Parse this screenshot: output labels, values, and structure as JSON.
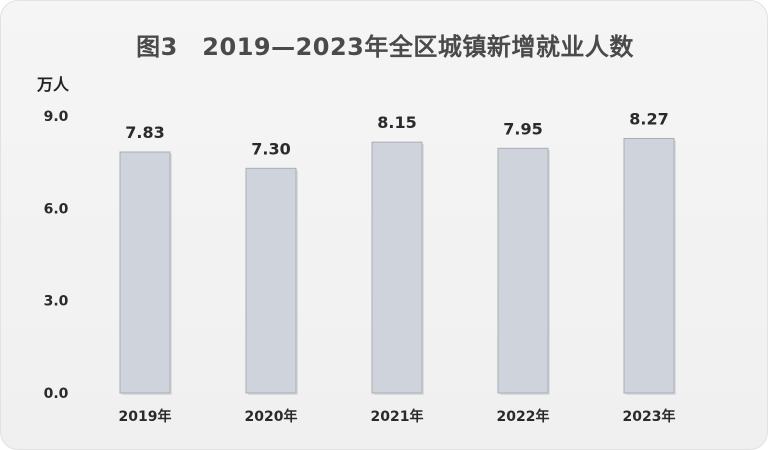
{
  "chart_data": {
    "type": "bar",
    "title": "图3　2019—2023年全区城镇新增就业人数",
    "ylabel": "万人",
    "xlabel": "",
    "categories": [
      "2019年",
      "2020年",
      "2021年",
      "2022年",
      "2023年"
    ],
    "values": [
      7.83,
      7.3,
      8.15,
      7.95,
      8.27
    ],
    "value_labels": [
      "7.83",
      "7.30",
      "8.15",
      "7.95",
      "8.27"
    ],
    "yticks": [
      "0.0",
      "3.0",
      "6.0",
      "9.0"
    ],
    "ylim": [
      0,
      9
    ],
    "grid": false,
    "legend": "none",
    "colors": {
      "bar_fill": "#cfd3dc",
      "bar_stroke": "#a9adb6",
      "text": "#2a2a2a"
    }
  }
}
